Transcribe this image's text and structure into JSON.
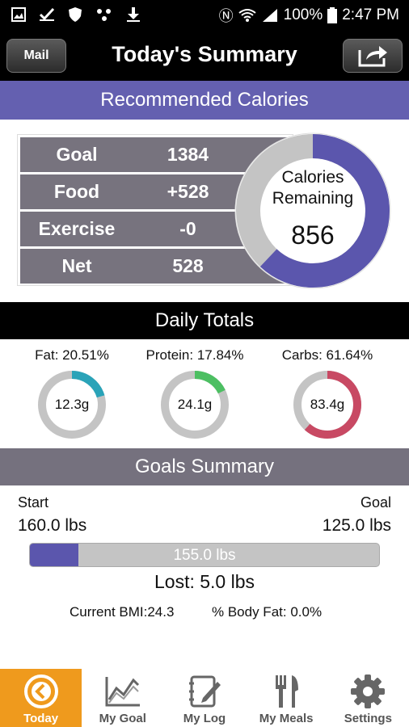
{
  "status_bar": {
    "battery": "100%",
    "time": "2:47 PM",
    "icons": [
      "image-icon",
      "check-icon",
      "shield-icon",
      "dots-icon",
      "download-icon"
    ]
  },
  "header": {
    "mail_label": "Mail",
    "title": "Today's Summary"
  },
  "recommended": {
    "title": "Recommended Calories",
    "rows": [
      {
        "label": "Goal",
        "value": "1384"
      },
      {
        "label": "Food",
        "value": "+528"
      },
      {
        "label": "Exercise",
        "value": "-0"
      },
      {
        "label": "Net",
        "value": "528"
      }
    ],
    "remaining_label_line1": "Calories",
    "remaining_label_line2": "Remaining",
    "remaining_value": "856",
    "ring_fraction": 0.62,
    "colors": {
      "accent": "#5b56ad",
      "track": "#c4c4c4"
    }
  },
  "daily_totals": {
    "title": "Daily Totals",
    "macros": [
      {
        "label": "Fat: 20.51%",
        "value": "12.3g",
        "fraction": 0.205,
        "color": "#2aa3b8"
      },
      {
        "label": "Protein: 17.84%",
        "value": "24.1g",
        "fraction": 0.178,
        "color": "#4cbf62"
      },
      {
        "label": "Carbs: 61.64%",
        "value": "83.4g",
        "fraction": 0.616,
        "color": "#c84963"
      }
    ]
  },
  "goals": {
    "title": "Goals Summary",
    "start_label": "Start",
    "start_value": "160.0 lbs",
    "goal_label": "Goal",
    "goal_value": "125.0 lbs",
    "progress_text": "155.0 lbs",
    "progress_fraction": 0.14,
    "lost": "Lost: 5.0 lbs",
    "bmi": "Current BMI:24.3",
    "body_fat": "% Body Fat: 0.0%"
  },
  "nav": {
    "items": [
      {
        "label": "Today",
        "icon": "today-icon"
      },
      {
        "label": "My Goal",
        "icon": "chart-icon"
      },
      {
        "label": "My Log",
        "icon": "log-icon"
      },
      {
        "label": "My Meals",
        "icon": "fork-knife-icon"
      },
      {
        "label": "Settings",
        "icon": "gear-icon"
      }
    ]
  }
}
